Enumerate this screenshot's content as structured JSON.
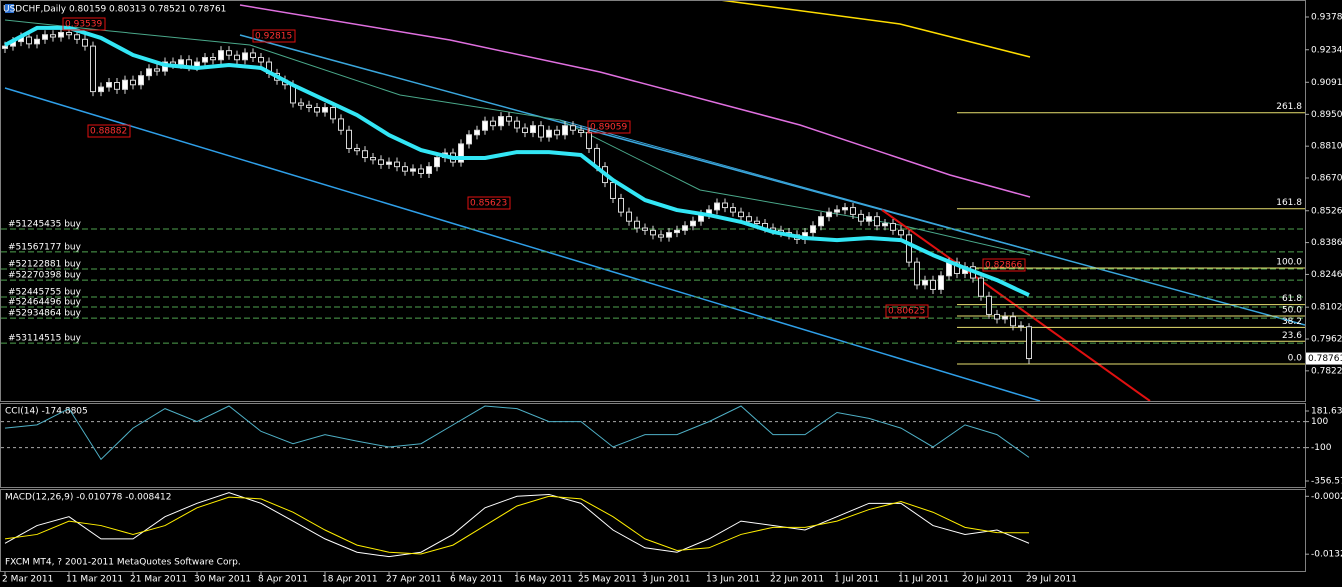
{
  "chart_data": {
    "type": "candlestick",
    "title": "USDCHF,Daily  0.80159 0.80313 0.78521 0.78761",
    "categories": [
      "2 Mar 2011",
      null,
      null,
      null,
      null,
      null,
      null,
      null,
      "11 Mar 2011",
      null,
      null,
      null,
      null,
      null,
      null,
      null,
      "21 Mar 2011",
      null,
      null,
      null,
      null,
      null,
      null,
      null,
      "30 Mar 2011",
      null,
      null,
      null,
      null,
      null,
      null,
      null,
      "8 Apr 2011",
      null,
      null,
      null,
      null,
      null,
      null,
      null,
      "18 Apr 2011",
      null,
      null,
      null,
      null,
      null,
      null,
      null,
      "27 Apr 2011",
      null,
      null,
      null,
      null,
      null,
      null,
      null,
      "6 May 2011",
      null,
      null,
      null,
      null,
      null,
      null,
      null,
      "16 May 2011",
      null,
      null,
      null,
      null,
      null,
      null,
      null,
      "25 May 2011",
      null,
      null,
      null,
      null,
      null,
      null,
      null,
      "3 Jun 2011",
      null,
      null,
      null,
      null,
      null,
      null,
      null,
      "13 Jun 2011",
      null,
      null,
      null,
      null,
      null,
      null,
      null,
      "22 Jun 2011",
      null,
      null,
      null,
      null,
      null,
      null,
      null,
      "1 Jul 2011",
      null,
      null,
      null,
      null,
      null,
      null,
      null,
      "11 Jul 2011",
      null,
      null,
      null,
      null,
      null,
      null,
      null,
      "20 Jul 2011",
      null,
      null,
      null,
      null,
      null,
      null,
      null,
      "29 Jul 2011"
    ],
    "open": [
      0.924,
      0.925,
      0.927,
      0.929,
      0.926,
      0.928,
      0.93,
      0.929,
      0.931,
      0.93,
      0.928,
      0.925,
      0.905,
      0.907,
      0.909,
      0.906,
      0.91,
      0.908,
      0.912,
      0.915,
      0.914,
      0.918,
      0.917,
      0.919,
      0.916,
      0.918,
      0.92,
      0.919,
      0.923,
      0.921,
      0.919,
      0.922,
      0.92,
      0.918,
      0.913,
      0.91,
      0.908,
      0.9,
      0.899,
      0.898,
      0.896,
      0.898,
      0.893,
      0.888,
      0.88,
      0.879,
      0.876,
      0.875,
      0.873,
      0.874,
      0.872,
      0.87,
      0.871,
      0.869,
      0.872,
      0.876,
      0.878,
      0.874,
      0.882,
      0.886,
      0.888,
      0.892,
      0.89,
      0.894,
      0.892,
      0.889,
      0.887,
      0.89,
      0.885,
      0.888,
      0.886,
      0.89,
      0.888,
      0.887,
      0.88,
      0.872,
      0.865,
      0.858,
      0.852,
      0.848,
      0.845,
      0.844,
      0.842,
      0.841,
      0.843,
      0.844,
      0.846,
      0.848,
      0.851,
      0.853,
      0.856,
      0.854,
      0.852,
      0.85,
      0.848,
      0.847,
      0.845,
      0.844,
      0.843,
      0.842,
      0.84,
      0.843,
      0.846,
      0.85,
      0.852,
      0.853,
      0.854,
      0.851,
      0.848,
      0.85,
      0.846,
      0.847,
      0.844,
      0.842,
      0.83,
      0.82,
      0.822,
      0.818,
      0.824,
      0.83,
      0.825,
      0.828,
      0.823,
      0.815,
      0.807,
      0.805,
      0.806,
      0.802,
      0.80159
    ],
    "high": [
      0.927,
      0.929,
      0.931,
      0.931,
      0.93,
      0.932,
      0.932,
      0.933,
      0.933,
      0.932,
      0.93,
      0.927,
      0.909,
      0.911,
      0.911,
      0.912,
      0.912,
      0.914,
      0.917,
      0.917,
      0.92,
      0.92,
      0.921,
      0.921,
      0.92,
      0.922,
      0.922,
      0.925,
      0.925,
      0.923,
      0.924,
      0.924,
      0.922,
      0.92,
      0.915,
      0.912,
      0.91,
      0.902,
      0.901,
      0.9,
      0.9,
      0.9,
      0.895,
      0.89,
      0.882,
      0.881,
      0.878,
      0.877,
      0.876,
      0.876,
      0.874,
      0.873,
      0.873,
      0.874,
      0.878,
      0.88,
      0.88,
      0.884,
      0.888,
      0.89,
      0.894,
      0.894,
      0.896,
      0.896,
      0.894,
      0.891,
      0.892,
      0.892,
      0.89,
      0.89,
      0.892,
      0.892,
      0.89,
      0.889,
      0.882,
      0.874,
      0.867,
      0.86,
      0.854,
      0.85,
      0.847,
      0.846,
      0.844,
      0.845,
      0.846,
      0.848,
      0.85,
      0.853,
      0.855,
      0.858,
      0.858,
      0.856,
      0.854,
      0.852,
      0.85,
      0.849,
      0.847,
      0.846,
      0.845,
      0.844,
      0.845,
      0.848,
      0.852,
      0.854,
      0.855,
      0.856,
      0.856,
      0.853,
      0.852,
      0.852,
      0.849,
      0.849,
      0.846,
      0.844,
      0.832,
      0.824,
      0.824,
      0.826,
      0.832,
      0.832,
      0.83,
      0.83,
      0.825,
      0.817,
      0.809,
      0.808,
      0.808,
      0.804,
      0.80313
    ],
    "low": [
      0.922,
      0.923,
      0.925,
      0.924,
      0.924,
      0.926,
      0.927,
      0.927,
      0.928,
      0.926,
      0.923,
      0.903,
      0.903,
      0.905,
      0.904,
      0.904,
      0.906,
      0.906,
      0.91,
      0.912,
      0.912,
      0.915,
      0.915,
      0.914,
      0.914,
      0.916,
      0.917,
      0.917,
      0.919,
      0.917,
      0.917,
      0.918,
      0.916,
      0.911,
      0.908,
      0.906,
      0.898,
      0.897,
      0.896,
      0.894,
      0.894,
      0.891,
      0.886,
      0.878,
      0.877,
      0.874,
      0.873,
      0.871,
      0.871,
      0.87,
      0.868,
      0.868,
      0.867,
      0.867,
      0.87,
      0.874,
      0.872,
      0.872,
      0.88,
      0.884,
      0.886,
      0.888,
      0.888,
      0.89,
      0.887,
      0.885,
      0.885,
      0.883,
      0.883,
      0.884,
      0.884,
      0.886,
      0.885,
      0.878,
      0.87,
      0.863,
      0.856,
      0.85,
      0.846,
      0.843,
      0.842,
      0.84,
      0.839,
      0.839,
      0.841,
      0.842,
      0.844,
      0.846,
      0.849,
      0.851,
      0.852,
      0.85,
      0.848,
      0.846,
      0.845,
      0.843,
      0.842,
      0.841,
      0.84,
      0.838,
      0.838,
      0.841,
      0.844,
      0.848,
      0.85,
      0.851,
      0.849,
      0.846,
      0.846,
      0.844,
      0.844,
      0.842,
      0.84,
      0.828,
      0.818,
      0.818,
      0.816,
      0.816,
      0.822,
      0.823,
      0.823,
      0.821,
      0.813,
      0.805,
      0.803,
      0.803,
      0.8,
      0.7996,
      0.78521
    ],
    "close": [
      0.925,
      0.927,
      0.929,
      0.926,
      0.928,
      0.93,
      0.929,
      0.931,
      0.93,
      0.928,
      0.925,
      0.905,
      0.907,
      0.909,
      0.906,
      0.91,
      0.908,
      0.912,
      0.915,
      0.914,
      0.918,
      0.917,
      0.919,
      0.916,
      0.918,
      0.92,
      0.919,
      0.923,
      0.921,
      0.919,
      0.922,
      0.92,
      0.918,
      0.913,
      0.91,
      0.908,
      0.9,
      0.899,
      0.898,
      0.896,
      0.898,
      0.893,
      0.888,
      0.88,
      0.879,
      0.876,
      0.875,
      0.873,
      0.874,
      0.872,
      0.87,
      0.871,
      0.869,
      0.872,
      0.876,
      0.878,
      0.874,
      0.882,
      0.886,
      0.888,
      0.892,
      0.89,
      0.894,
      0.892,
      0.889,
      0.887,
      0.89,
      0.885,
      0.888,
      0.886,
      0.89,
      0.888,
      0.887,
      0.88,
      0.872,
      0.865,
      0.858,
      0.852,
      0.848,
      0.845,
      0.844,
      0.842,
      0.841,
      0.843,
      0.844,
      0.846,
      0.848,
      0.851,
      0.853,
      0.856,
      0.854,
      0.852,
      0.85,
      0.848,
      0.847,
      0.845,
      0.844,
      0.843,
      0.842,
      0.84,
      0.843,
      0.846,
      0.85,
      0.852,
      0.853,
      0.854,
      0.851,
      0.848,
      0.85,
      0.846,
      0.847,
      0.844,
      0.842,
      0.83,
      0.82,
      0.822,
      0.818,
      0.824,
      0.83,
      0.825,
      0.828,
      0.823,
      0.815,
      0.807,
      0.805,
      0.806,
      0.802,
      0.80159,
      0.78761
    ],
    "up_color": "#ffffff",
    "down_color": "#000000",
    "ylim": [
      0.76894,
      0.94484
    ],
    "yticks": [
      {
        "value": 0.9378,
        "label": "0.93780"
      },
      {
        "value": 0.9234,
        "label": "0.92340"
      },
      {
        "value": 0.9091,
        "label": "0.90910"
      },
      {
        "value": 0.895,
        "label": "0.89500"
      },
      {
        "value": 0.881,
        "label": "0.88100"
      },
      {
        "value": 0.867,
        "label": "0.86700"
      },
      {
        "value": 0.8526,
        "label": "0.85260"
      },
      {
        "value": 0.8386,
        "label": "0.83860"
      },
      {
        "value": 0.8246,
        "label": "0.82460"
      },
      {
        "value": 0.8102,
        "label": "0.81020"
      },
      {
        "value": 0.7962,
        "label": "0.79620"
      },
      {
        "value": 0.7822,
        "label": "0.78220"
      }
    ],
    "current_price": {
      "value": 0.78761,
      "label": "0.78761"
    },
    "moving_average": {
      "color": "#33e6f5",
      "values": [
        0.9255,
        0.933,
        0.933,
        0.9286,
        0.9211,
        0.9167,
        0.9154,
        0.9167,
        0.9154,
        0.9079,
        0.9013,
        0.8947,
        0.8859,
        0.8793,
        0.8758,
        0.8758,
        0.8784,
        0.8784,
        0.8771,
        0.8661,
        0.8573,
        0.8529,
        0.8507,
        0.8477,
        0.8433,
        0.8406,
        0.8397,
        0.8406,
        0.8397,
        0.8331,
        0.8274,
        0.8221,
        0.8155
      ]
    },
    "orders": [
      {
        "label": "#51245435 buy",
        "price": 0.8446
      },
      {
        "label": "#51567177 buy",
        "price": 0.8345
      },
      {
        "label": "#52122881 buy",
        "price": 0.827
      },
      {
        "label": "#52270398 buy",
        "price": 0.8221
      },
      {
        "label": "#52445755 buy",
        "price": 0.8147
      },
      {
        "label": "#52464496 buy",
        "price": 0.8103
      },
      {
        "label": "#52934864 buy",
        "price": 0.8054
      },
      {
        "label": "#53114515 buy",
        "price": 0.7944
      }
    ],
    "fibonacci": [
      {
        "label": "261.8",
        "price": 0.8957
      },
      {
        "label": "161.8",
        "price": 0.8535
      },
      {
        "label": "100.0",
        "price": 0.8274
      },
      {
        "label": "61.8",
        "price": 0.8113
      },
      {
        "label": "50.0",
        "price": 0.8063
      },
      {
        "label": "38.2",
        "price": 0.8013
      },
      {
        "label": "23.6",
        "price": 0.7952
      },
      {
        "label": "0.0",
        "price": 0.78521
      }
    ],
    "price_labels": [
      "0.93539",
      "0.92815",
      "0.88882",
      "0.85623",
      "0.89059",
      "0.82866",
      "0.80625"
    ],
    "cci": {
      "type": "line",
      "title": "CCI(14) -174.8805",
      "color": "#4fb0c6",
      "values": [
        50,
        75,
        200,
        -190,
        50,
        200,
        100,
        220,
        25,
        -70,
        0,
        -50,
        -95,
        -70,
        75,
        220,
        200,
        100,
        100,
        -95,
        0,
        0,
        100,
        220,
        0,
        0,
        170,
        125,
        50,
        -95,
        75,
        0,
        -174.8805
      ],
      "ylim": [
        -356.571,
        181.638
      ],
      "yticks": [
        {
          "value": 181.638,
          "label": "181.6380"
        },
        100,
        -100,
        -356.571
      ],
      "grid": [
        100,
        -100
      ]
    },
    "macd": {
      "type": "line",
      "title": "MACD(12,26,9) -0.010778 -0.008412",
      "series": [
        {
          "color": "#ffffff",
          "values": [
            -0.0108,
            -0.0068,
            -0.0048,
            -0.0098,
            -0.0098,
            -0.0048,
            -0.0018,
            0.0006,
            -0.0018,
            -0.0058,
            -0.0098,
            -0.0128,
            -0.0138,
            -0.0128,
            -0.0088,
            -0.0028,
            -0.0002,
            0.0002,
            -0.0018,
            -0.0078,
            -0.0118,
            -0.0128,
            -0.0098,
            -0.0058,
            -0.0068,
            -0.0078,
            -0.0048,
            -0.0018,
            -0.0018,
            -0.0068,
            -0.0088,
            -0.0078,
            -0.010778
          ]
        },
        {
          "color": "#ffee00",
          "values": [
            -0.0098,
            -0.0088,
            -0.0058,
            -0.0068,
            -0.0088,
            -0.0068,
            -0.0028,
            -0.0004,
            -0.0008,
            -0.0038,
            -0.0078,
            -0.0112,
            -0.0128,
            -0.0132,
            -0.0112,
            -0.0068,
            -0.0024,
            -0.0002,
            -0.0008,
            -0.0048,
            -0.0098,
            -0.0124,
            -0.0118,
            -0.0088,
            -0.0072,
            -0.0072,
            -0.0058,
            -0.0032,
            -0.0014,
            -0.0038,
            -0.0072,
            -0.0084,
            -0.008412
          ]
        }
      ],
      "ylim": [
        -0.0168,
        0.0012
      ],
      "yticks": [
        -0.00022,
        -0.01324
      ]
    },
    "footer": "FXCM MT4, ? 2001-2011 MetaQuotes Software Corp."
  }
}
